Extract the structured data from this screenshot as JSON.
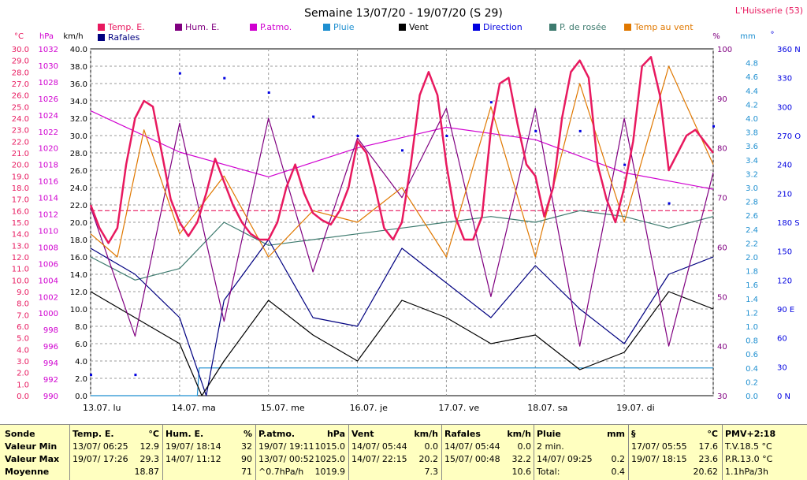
{
  "header": {
    "title": "Semaine 13/07/20 - 19/07/20 (S 29)",
    "station": "L'Huisserie (53)"
  },
  "legend": [
    {
      "name": "Temp. E.",
      "color": "#e8195f"
    },
    {
      "name": "Hum. E.",
      "color": "#800080"
    },
    {
      "name": "P.atmo.",
      "color": "#d000d0"
    },
    {
      "name": "Pluie",
      "color": "#1e8fd0"
    },
    {
      "name": "Vent",
      "color": "#000000"
    },
    {
      "name": "Direction",
      "color": "#0000e0"
    },
    {
      "name": "P. de rosée",
      "color": "#3d7a6e"
    },
    {
      "name": "Temp au vent",
      "color": "#e07800"
    },
    {
      "name": "Rafales",
      "color": "#000080"
    }
  ],
  "chart_data": {
    "type": "line",
    "x_labels": [
      "13.07. lu",
      "14.07. ma",
      "15.07. me",
      "16.07. je",
      "17.07. ve",
      "18.07. sa",
      "19.07. di"
    ],
    "axes": {
      "temp_c": {
        "unit": "°C",
        "min": 0,
        "max": 30,
        "ticks": [
          "0.0",
          "1.0",
          "2.0",
          "3.0",
          "4.0",
          "5.0",
          "6.0",
          "7.0",
          "8.0",
          "9.0",
          "10.0",
          "11.0",
          "12.0",
          "13.0",
          "14.0",
          "15.0",
          "16.0",
          "17.0",
          "18.0",
          "19.0",
          "20.0",
          "21.0",
          "22.0",
          "23.0",
          "24.0",
          "25.0",
          "26.0",
          "27.0",
          "28.0",
          "29.0",
          "30.0"
        ]
      },
      "pressure_hpa": {
        "unit": "hPa",
        "min": 990,
        "max": 1032,
        "ticks": [
          "990",
          "992",
          "994",
          "996",
          "998",
          "1000",
          "1002",
          "1004",
          "1006",
          "1008",
          "1010",
          "1012",
          "1014",
          "1016",
          "1018",
          "1020",
          "1022",
          "1024",
          "1026",
          "1028",
          "1030",
          "1032"
        ]
      },
      "wind_kmh": {
        "unit": "km/h",
        "min": 0,
        "max": 40,
        "ticks": [
          "0.0",
          "2.0",
          "4.0",
          "6.0",
          "8.0",
          "10.0",
          "12.0",
          "14.0",
          "16.0",
          "18.0",
          "20.0",
          "22.0",
          "24.0",
          "26.0",
          "28.0",
          "30.0",
          "32.0",
          "34.0",
          "36.0",
          "38.0",
          "40.0"
        ]
      },
      "humidity_pct": {
        "unit": "%",
        "min": 30,
        "max": 100,
        "ticks": [
          "30",
          "40",
          "50",
          "60",
          "70",
          "80",
          "90",
          "100"
        ]
      },
      "rain_mm": {
        "unit": "mm",
        "min": 0,
        "max": 5,
        "ticks": [
          "0.0",
          "0.2",
          "0.4",
          "0.6",
          "0.8",
          "1.0",
          "1.2",
          "1.4",
          "1.6",
          "1.8",
          "2.0",
          "2.2",
          "2.4",
          "2.6",
          "2.8",
          "3.0",
          "3.2",
          "3.4",
          "3.6",
          "3.8",
          "4.0",
          "4.2",
          "4.4",
          "4.6",
          "4.8"
        ]
      },
      "direction_deg": {
        "unit": "°",
        "min": 0,
        "max": 360,
        "ticks": [
          "0 N",
          "30",
          "60",
          "90 E",
          "120",
          "150",
          "180 S",
          "210",
          "240",
          "270 O",
          "300",
          "330",
          "360 N"
        ]
      }
    },
    "series": [
      {
        "name": "Temp. E.",
        "axis": "temp_c",
        "x": [
          0,
          0.1,
          0.2,
          0.3,
          0.4,
          0.5,
          0.6,
          0.7,
          0.8,
          0.9,
          1,
          1.1,
          1.2,
          1.3,
          1.4,
          1.5,
          1.6,
          1.7,
          1.8,
          1.9,
          2,
          2.1,
          2.2,
          2.3,
          2.4,
          2.5,
          2.6,
          2.7,
          2.8,
          2.9,
          3,
          3.1,
          3.2,
          3.3,
          3.4,
          3.5,
          3.6,
          3.7,
          3.8,
          3.9,
          4,
          4.1,
          4.2,
          4.3,
          4.4,
          4.5,
          4.6,
          4.7,
          4.8,
          4.9,
          5,
          5.1,
          5.2,
          5.3,
          5.4,
          5.5,
          5.6,
          5.7,
          5.8,
          5.9,
          6,
          6.1,
          6.2,
          6.3,
          6.4,
          6.5,
          6.6,
          6.7,
          6.8,
          6.9,
          7
        ],
        "values": [
          16.5,
          14.5,
          13.2,
          14.5,
          20.0,
          24.0,
          25.5,
          25.0,
          21.0,
          17.0,
          15.0,
          13.8,
          15.0,
          17.5,
          20.5,
          18.5,
          16.5,
          15.0,
          14.0,
          13.5,
          13.5,
          15.0,
          18.0,
          20.0,
          17.5,
          15.8,
          15.2,
          14.8,
          16.0,
          18.0,
          22.0,
          21.0,
          18.0,
          14.5,
          13.5,
          15.0,
          20.0,
          26.0,
          28.0,
          26.0,
          20.0,
          15.5,
          13.5,
          13.5,
          15.5,
          23.0,
          27.0,
          27.5,
          23.5,
          20.0,
          19.0,
          15.5,
          18.0,
          24.0,
          28.0,
          29.0,
          27.5,
          20.0,
          17.0,
          15.0,
          18.0,
          22.0,
          28.5,
          29.3,
          26.0,
          19.5,
          21.0,
          22.5,
          23.0,
          22.0,
          21.0
        ]
      },
      {
        "name": "Hum. E.",
        "axis": "humidity_pct",
        "x": [
          0,
          0.5,
          1,
          1.5,
          2,
          2.5,
          3,
          3.5,
          4,
          4.5,
          5,
          5.5,
          6,
          6.5,
          7
        ],
        "values": [
          68,
          42,
          85,
          45,
          86,
          55,
          82,
          70,
          88,
          50,
          88,
          40,
          86,
          40,
          75
        ]
      },
      {
        "name": "P.atmo.",
        "axis": "pressure_hpa",
        "x": [
          0,
          1,
          2,
          3,
          4,
          5,
          6,
          7
        ],
        "values": [
          1024.5,
          1019.5,
          1016.5,
          1020.0,
          1022.5,
          1021.0,
          1017.0,
          1015.0
        ]
      },
      {
        "name": "Pluie",
        "axis": "rain_mm",
        "x": [
          0,
          1.2,
          1.22,
          7
        ],
        "values": [
          0.0,
          0.0,
          0.4,
          0.4
        ]
      },
      {
        "name": "Vent",
        "axis": "wind_kmh",
        "x": [
          0,
          0.5,
          1,
          1.25,
          1.5,
          2,
          2.5,
          3,
          3.5,
          4,
          4.5,
          5,
          5.5,
          6,
          6.5,
          7
        ],
        "values": [
          12,
          9,
          6,
          0,
          4,
          11,
          7,
          4,
          11,
          9,
          6,
          7,
          3,
          5,
          12,
          10
        ]
      },
      {
        "name": "Rafales",
        "axis": "wind_kmh",
        "x": [
          0,
          0.5,
          1,
          1.3,
          1.5,
          2,
          2.5,
          3,
          3.5,
          4,
          4.5,
          5,
          5.5,
          6,
          6.5,
          7
        ],
        "values": [
          17,
          14,
          9,
          0,
          11,
          18,
          9,
          8,
          17,
          13,
          9,
          15,
          10,
          6,
          14,
          16
        ]
      },
      {
        "name": "P. de rosée",
        "axis": "temp_c",
        "x": [
          0,
          0.5,
          1,
          1.5,
          2,
          2.5,
          3,
          3.5,
          4,
          4.5,
          5,
          5.5,
          6,
          6.5,
          7
        ],
        "values": [
          12,
          10,
          11,
          15,
          13,
          13.5,
          14,
          14.5,
          15,
          15.5,
          15,
          16,
          15.5,
          14.5,
          15.5
        ]
      },
      {
        "name": "Temp au vent",
        "axis": "temp_c",
        "x": [
          0,
          0.3,
          0.6,
          1,
          1.5,
          2,
          2.5,
          3,
          3.5,
          4,
          4.5,
          5,
          5.5,
          6,
          6.5,
          7
        ],
        "values": [
          14,
          12,
          23,
          14,
          19,
          12,
          16,
          15,
          18,
          12,
          25,
          12,
          27,
          15,
          28.5,
          20
        ]
      },
      {
        "name": "Direction",
        "axis": "direction_deg",
        "x": [
          0,
          0.5,
          1,
          1.5,
          2,
          2.5,
          3,
          3.5,
          4,
          4.5,
          5,
          5.5,
          6,
          6.5,
          7
        ],
        "values": [
          22,
          22,
          335,
          330,
          315,
          290,
          270,
          255,
          270,
          305,
          275,
          275,
          240,
          200,
          280
        ]
      }
    ],
    "reference_lines": [
      {
        "axis": "temp_c",
        "value": 16.0,
        "color": "#e8195f",
        "style": "dashed"
      }
    ],
    "grid": true
  },
  "stats": {
    "row_labels": [
      "Sonde",
      "Valeur Min",
      "Valeur Max",
      "Moyenne"
    ],
    "columns": [
      {
        "title": "Temp. E.",
        "unit": "°C",
        "rows": [
          [
            "13/07/ 06:25",
            "12.9"
          ],
          [
            "19/07/ 17:26",
            "29.3"
          ],
          [
            "",
            "18.87"
          ]
        ]
      },
      {
        "title": "Hum. E.",
        "unit": "%",
        "rows": [
          [
            "19/07/ 18:14",
            "32"
          ],
          [
            "14/07/ 11:12",
            "90"
          ],
          [
            "",
            "71"
          ]
        ]
      },
      {
        "title": "P.atmo.",
        "unit": "hPa",
        "rows": [
          [
            "19/07/ 19:11",
            "1015.0"
          ],
          [
            "13/07/ 00:52",
            "1025.0"
          ],
          [
            "^0.7hPa/h",
            "1019.9"
          ]
        ]
      },
      {
        "title": "Vent",
        "unit": "km/h",
        "rows": [
          [
            "14/07/ 05:44",
            "0.0"
          ],
          [
            "14/07/ 22:15",
            "20.2"
          ],
          [
            "",
            "7.3"
          ]
        ]
      },
      {
        "title": "Rafales",
        "unit": "km/h",
        "rows": [
          [
            "14/07/ 05:44",
            "0.0"
          ],
          [
            "15/07/ 00:48",
            "32.2"
          ],
          [
            "",
            "10.6"
          ]
        ]
      },
      {
        "title": "Pluie",
        "unit": "mm",
        "rows": [
          [
            "2 min.",
            ""
          ],
          [
            "14/07/ 09:25",
            "0.2"
          ],
          [
            "Total:",
            "0.4"
          ]
        ]
      },
      {
        "title": "§",
        "unit": "°C",
        "rows": [
          [
            "17/07/ 05:55",
            "17.6"
          ],
          [
            "19/07/ 18:15",
            "23.6"
          ],
          [
            "",
            "20.62"
          ]
        ]
      }
    ],
    "pmv": {
      "title": "PMV+2:18",
      "lines": [
        "T.V.18.5 °C",
        "P.R.13.0 °C",
        "1.1hPa/3h"
      ]
    }
  }
}
